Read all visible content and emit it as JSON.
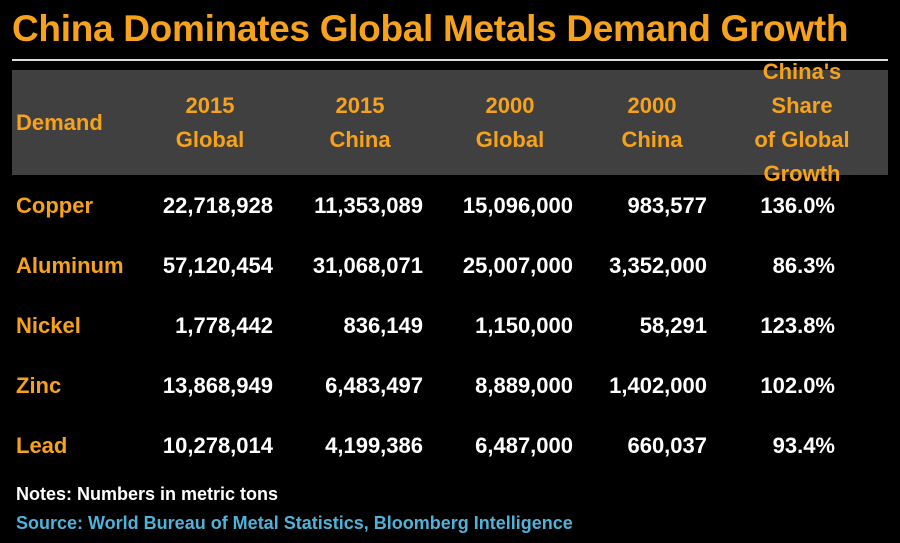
{
  "title": "China Dominates Global Metals Demand Growth",
  "colors": {
    "accent": "#f7a21b",
    "header_bg": "#404040",
    "background": "#000000",
    "source": "#4db3da"
  },
  "chart_data": {
    "type": "table",
    "title": "China Dominates Global Metals Demand Growth",
    "columns": [
      "Demand",
      "2015\nGlobal",
      "2015\nChina",
      "2000\nGlobal",
      "2000\nChina",
      "China's Share\nof Global\nGrowth"
    ],
    "rows": [
      [
        "Copper",
        "22,718,928",
        "11,353,089",
        "15,096,000",
        "983,577",
        "136.0%"
      ],
      [
        "Aluminum",
        "57,120,454",
        "31,068,071",
        "25,007,000",
        "3,352,000",
        "86.3%"
      ],
      [
        "Nickel",
        "1,778,442",
        "836,149",
        "1,150,000",
        "58,291",
        "123.8%"
      ],
      [
        "Zinc",
        "13,868,949",
        "6,483,497",
        "8,889,000",
        "1,402,000",
        "102.0%"
      ],
      [
        "Lead",
        "10,278,014",
        "4,199,386",
        "6,487,000",
        "660,037",
        "93.4%"
      ]
    ]
  },
  "notes": "Notes: Numbers in metric tons",
  "source": "Source: World Bureau of Metal Statistics, Bloomberg Intelligence"
}
